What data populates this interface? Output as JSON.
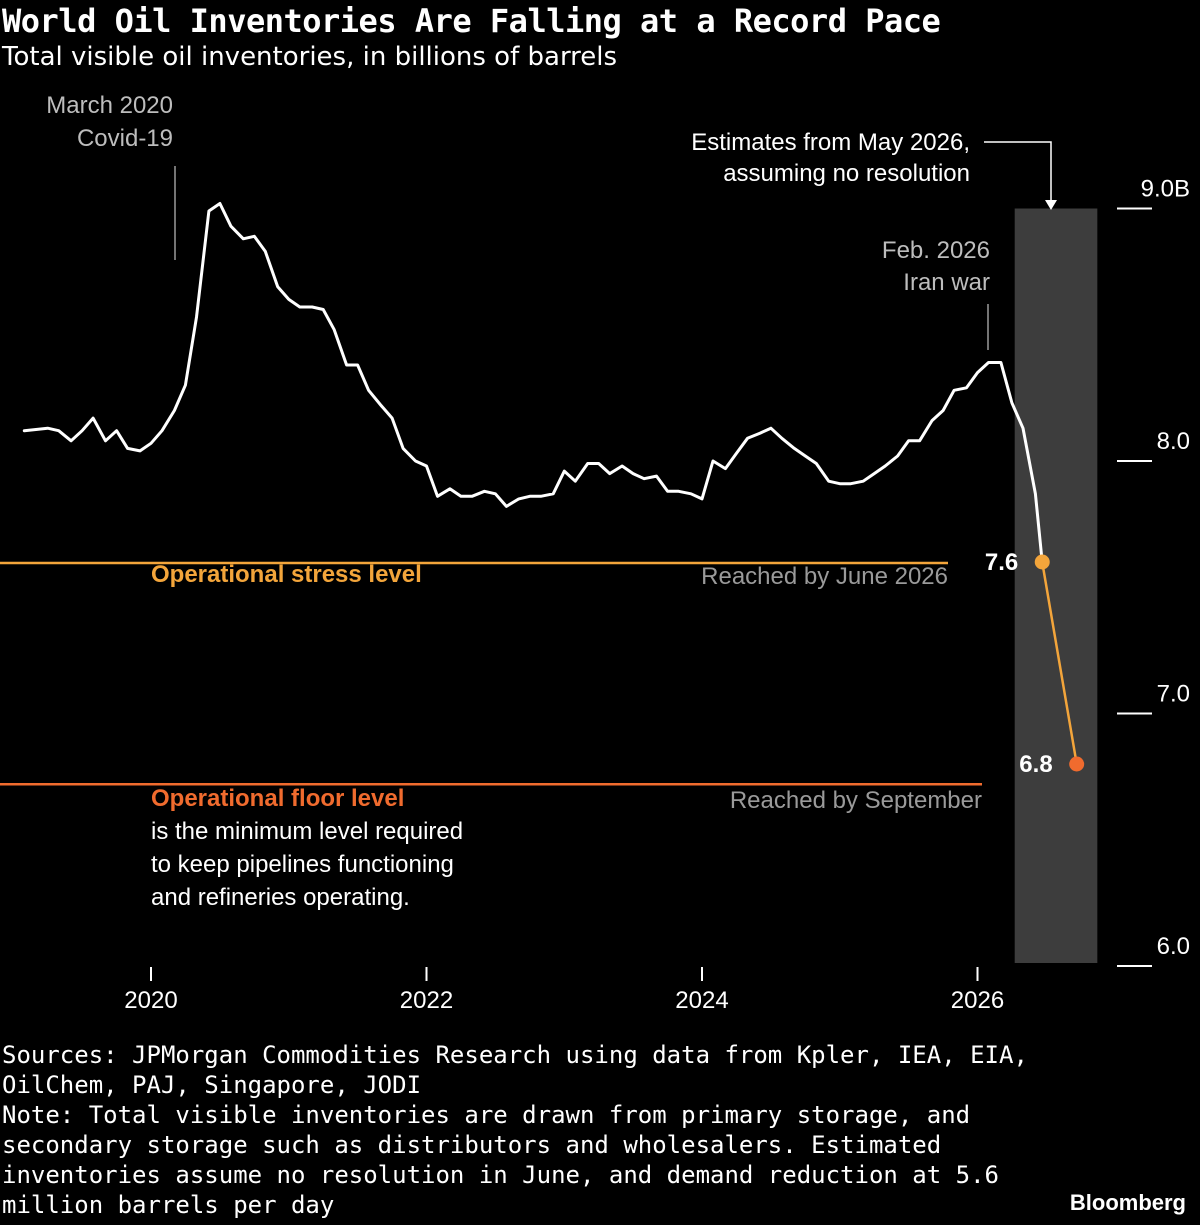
{
  "chart_data": {
    "type": "line",
    "title": "World Oil Inventories Are Falling at a Record Pace",
    "subtitle": "Total visible oil inventories, in billions of barrels",
    "x_ticks": [
      "2020",
      "2022",
      "2024",
      "2026"
    ],
    "y_ticks": [
      "9.0B",
      "8.0",
      "7.0",
      "6.0"
    ],
    "ylim": [
      6.0,
      9.0
    ],
    "xlim": [
      2019.0,
      2027.7
    ],
    "grid": false,
    "series": [
      {
        "type": "line",
        "color": "#ffffff",
        "points": [
          [
            2019.08,
            8.12
          ],
          [
            2019.25,
            8.13
          ],
          [
            2019.33,
            8.12
          ],
          [
            2019.42,
            8.08
          ],
          [
            2019.5,
            8.12
          ],
          [
            2019.58,
            8.17
          ],
          [
            2019.67,
            8.08
          ],
          [
            2019.75,
            8.12
          ],
          [
            2019.83,
            8.05
          ],
          [
            2019.92,
            8.04
          ],
          [
            2020.0,
            8.07
          ],
          [
            2020.08,
            8.12
          ],
          [
            2020.17,
            8.2
          ],
          [
            2020.25,
            8.3
          ],
          [
            2020.33,
            8.57
          ],
          [
            2020.42,
            8.99
          ],
          [
            2020.5,
            9.02
          ],
          [
            2020.58,
            8.93
          ],
          [
            2020.67,
            8.88
          ],
          [
            2020.75,
            8.89
          ],
          [
            2020.83,
            8.83
          ],
          [
            2020.92,
            8.69
          ],
          [
            2021.0,
            8.64
          ],
          [
            2021.08,
            8.61
          ],
          [
            2021.17,
            8.61
          ],
          [
            2021.25,
            8.6
          ],
          [
            2021.33,
            8.52
          ],
          [
            2021.42,
            8.38
          ],
          [
            2021.5,
            8.38
          ],
          [
            2021.58,
            8.28
          ],
          [
            2021.67,
            8.22
          ],
          [
            2021.75,
            8.17
          ],
          [
            2021.83,
            8.05
          ],
          [
            2021.92,
            8.0
          ],
          [
            2022.0,
            7.98
          ],
          [
            2022.08,
            7.86
          ],
          [
            2022.17,
            7.89
          ],
          [
            2022.25,
            7.86
          ],
          [
            2022.33,
            7.86
          ],
          [
            2022.42,
            7.88
          ],
          [
            2022.5,
            7.87
          ],
          [
            2022.58,
            7.82
          ],
          [
            2022.67,
            7.85
          ],
          [
            2022.75,
            7.86
          ],
          [
            2022.83,
            7.86
          ],
          [
            2022.92,
            7.87
          ],
          [
            2023.0,
            7.96
          ],
          [
            2023.08,
            7.92
          ],
          [
            2023.17,
            7.99
          ],
          [
            2023.25,
            7.99
          ],
          [
            2023.33,
            7.95
          ],
          [
            2023.42,
            7.98
          ],
          [
            2023.5,
            7.95
          ],
          [
            2023.58,
            7.93
          ],
          [
            2023.67,
            7.94
          ],
          [
            2023.75,
            7.88
          ],
          [
            2023.83,
            7.88
          ],
          [
            2023.92,
            7.87
          ],
          [
            2024.0,
            7.85
          ],
          [
            2024.08,
            8.0
          ],
          [
            2024.17,
            7.97
          ],
          [
            2024.25,
            8.03
          ],
          [
            2024.33,
            8.09
          ],
          [
            2024.42,
            8.11
          ],
          [
            2024.5,
            8.13
          ],
          [
            2024.58,
            8.09
          ],
          [
            2024.67,
            8.05
          ],
          [
            2024.75,
            8.02
          ],
          [
            2024.83,
            7.99
          ],
          [
            2024.92,
            7.92
          ],
          [
            2025.0,
            7.91
          ],
          [
            2025.08,
            7.91
          ],
          [
            2025.17,
            7.92
          ],
          [
            2025.25,
            7.95
          ],
          [
            2025.33,
            7.98
          ],
          [
            2025.42,
            8.02
          ],
          [
            2025.5,
            8.08
          ],
          [
            2025.58,
            8.08
          ],
          [
            2025.67,
            8.16
          ],
          [
            2025.75,
            8.2
          ],
          [
            2025.83,
            8.28
          ],
          [
            2025.92,
            8.29
          ],
          [
            2026.0,
            8.35
          ],
          [
            2026.08,
            8.39
          ],
          [
            2026.17,
            8.39
          ],
          [
            2026.25,
            8.23
          ],
          [
            2026.33,
            8.13
          ],
          [
            2026.42,
            7.87
          ],
          [
            2026.47,
            7.6
          ]
        ]
      },
      {
        "type": "line",
        "color": "#f3a53b",
        "points": [
          [
            2026.47,
            7.6
          ],
          [
            2026.72,
            6.8
          ]
        ]
      }
    ],
    "estimates": [
      {
        "label": "7.6",
        "x": 2026.47,
        "y": 7.6,
        "color": "#f3a53b"
      },
      {
        "label": "6.8",
        "x": 2026.72,
        "y": 6.8,
        "color": "#f06b2e"
      }
    ],
    "estimate_band": {
      "x_start": 2026.27,
      "x_end": 2026.87,
      "color": "#3d3d3d"
    },
    "reference_lines": [
      {
        "name": "Operational stress level",
        "y": 7.6,
        "color": "#f3a53b",
        "note": "Reached by June 2026"
      },
      {
        "name": "Operational floor level",
        "y": 6.72,
        "color": "#f06b2e",
        "note": "Reached by September"
      }
    ],
    "annotations": {
      "covid": {
        "line1": "March 2020",
        "line2": "Covid-19",
        "x": 2020.18
      },
      "iran": {
        "line1": "Feb. 2026",
        "line2": "Iran war",
        "x": 2026.08
      },
      "estimates": {
        "line1": "Estimates from May 2026,",
        "line2": "assuming no resolution"
      },
      "floor_desc": [
        "is the minimum level required",
        "to keep pipelines functioning",
        "and refineries operating."
      ]
    }
  },
  "footer": {
    "sources": "Sources: JPMorgan Commodities Research using data from Kpler, IEA, EIA, OilChem, PAJ, Singapore, JODI",
    "note": "Note: Total visible inventories are drawn from primary storage, and secondary storage such as distributors and wholesalers. Estimated inventories assume no resolution in June, and demand reduction at 5.6 million barrels per day"
  },
  "brand": "Bloomberg"
}
